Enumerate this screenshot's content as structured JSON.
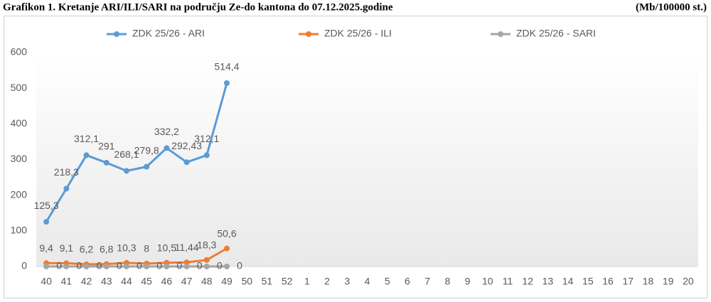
{
  "chart_data": {
    "type": "line",
    "title": "Grafikon 1. Kretanje ARI/ILI/SARI na području Ze-do kantona do 07.12.2025.godine",
    "subtitle": "(Mb/100000 st.)",
    "categories": [
      "40",
      "41",
      "42",
      "43",
      "44",
      "45",
      "46",
      "47",
      "48",
      "49",
      "50",
      "51",
      "52",
      "1",
      "2",
      "3",
      "4",
      "5",
      "6",
      "7",
      "8",
      "9",
      "10",
      "11",
      "12",
      "13",
      "14",
      "15",
      "16",
      "17",
      "18",
      "19",
      "20"
    ],
    "series": [
      {
        "name": "ZDK 25/26 - ARI",
        "color": "#5b9bd5",
        "values": [
          125.3,
          218.3,
          312.1,
          291,
          268.1,
          279.8,
          332.2,
          292.43,
          312.1,
          514.4,
          null,
          null,
          null,
          null,
          null,
          null,
          null,
          null,
          null,
          null,
          null,
          null,
          null,
          null,
          null,
          null,
          null,
          null,
          null,
          null,
          null,
          null,
          null
        ],
        "value_labels": [
          "125,3",
          "218,3",
          "312,1",
          "291",
          "268,1",
          "279,8",
          "332,2",
          "292,43",
          "312,1",
          "514,4",
          null,
          null,
          null,
          null,
          null,
          null,
          null,
          null,
          null,
          null,
          null,
          null,
          null,
          null,
          null,
          null,
          null,
          null,
          null,
          null,
          null,
          null,
          null
        ]
      },
      {
        "name": "ZDK 25/26 - ILI",
        "color": "#ed7d31",
        "values": [
          9.4,
          9.1,
          6.2,
          6.8,
          10.3,
          8,
          10.5,
          11.44,
          18.3,
          50.6,
          null,
          null,
          null,
          null,
          null,
          null,
          null,
          null,
          null,
          null,
          null,
          null,
          null,
          null,
          null,
          null,
          null,
          null,
          null,
          null,
          null,
          null,
          null
        ],
        "value_labels": [
          "9,4",
          "9,1",
          "6,2",
          "6,8",
          "10,3",
          "8",
          "10,5",
          "11,44",
          "18,3",
          "50,6",
          null,
          null,
          null,
          null,
          null,
          null,
          null,
          null,
          null,
          null,
          null,
          null,
          null,
          null,
          null,
          null,
          null,
          null,
          null,
          null,
          null,
          null,
          null
        ]
      },
      {
        "name": "ZDK 25/26 - SARI",
        "color": "#a5a5a5",
        "values": [
          0,
          0,
          0,
          0,
          0,
          0,
          0,
          0,
          0,
          0,
          null,
          null,
          null,
          null,
          null,
          null,
          null,
          null,
          null,
          null,
          null,
          null,
          null,
          null,
          null,
          null,
          null,
          null,
          null,
          null,
          null,
          null,
          null
        ]
      }
    ],
    "ylim": [
      0,
      600
    ],
    "yticks": [
      0,
      100,
      200,
      300,
      400,
      500,
      600
    ],
    "grid": false,
    "legend": "top"
  }
}
